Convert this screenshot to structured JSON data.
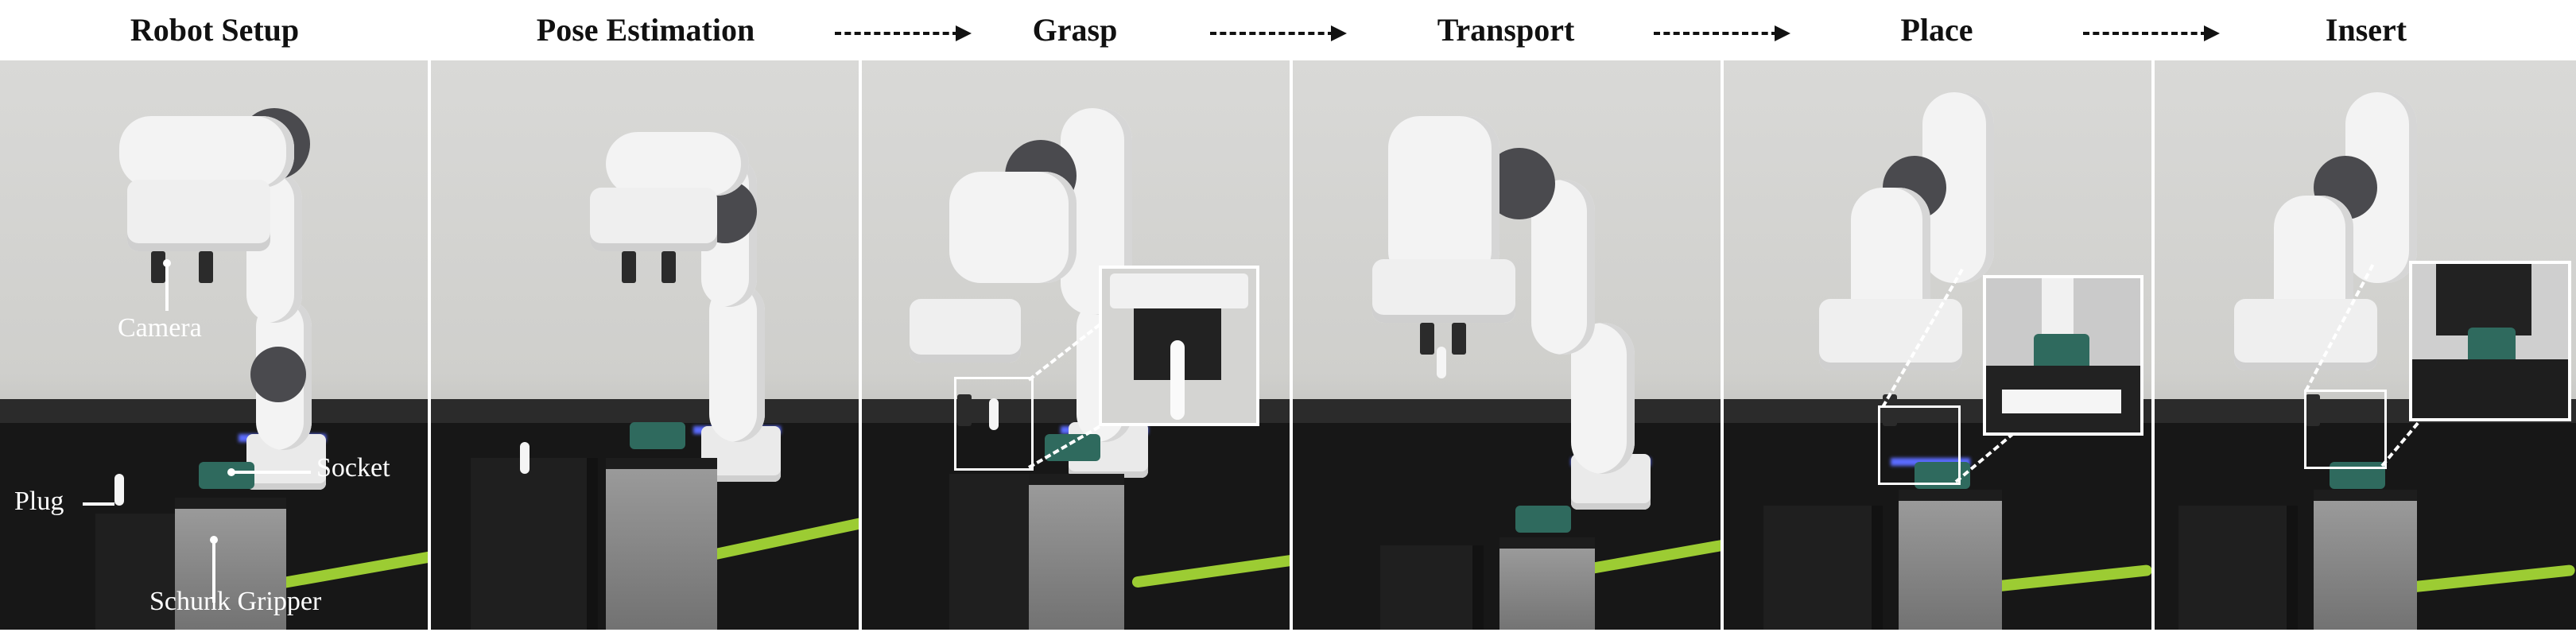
{
  "stages": [
    {
      "title": "Robot Setup"
    },
    {
      "title": "Pose Estimation"
    },
    {
      "title": "Grasp"
    },
    {
      "title": "Transport"
    },
    {
      "title": "Place"
    },
    {
      "title": "Insert"
    }
  ],
  "annotations": {
    "camera": "Camera",
    "socket": "Socket",
    "plug": "Plug",
    "schunk_gripper": "Schunk Gripper"
  },
  "colors": {
    "cable": "#9ccc33",
    "robot_white": "#f3f3f3",
    "joint_gray": "#4a4a4e",
    "socket_green": "#2f6a5e",
    "led_blue": "#5b6cff"
  }
}
